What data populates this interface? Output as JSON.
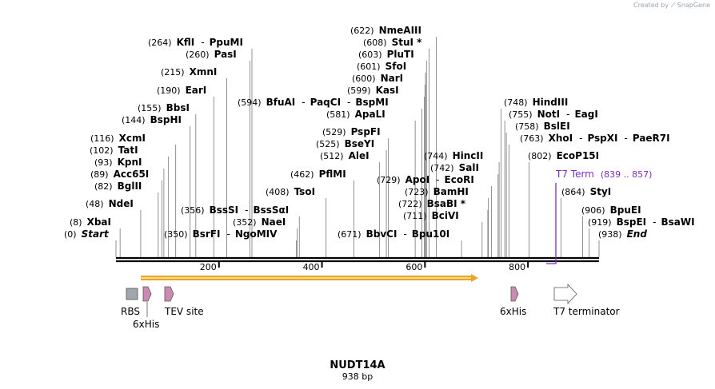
{
  "header": {
    "credit_text": "Created by",
    "brand": "SnapGene"
  },
  "map": {
    "name": "NUDT14A",
    "length_label": "938 bp",
    "length_bp": 938,
    "ticks": [
      "200",
      "400",
      "600",
      "800"
    ],
    "colors": {
      "line": "#000000",
      "feature_label": "#7b2fbe",
      "orf": "#f0a030",
      "orf_core": "#f7e27a",
      "tag": "#c98bb1",
      "rbs": "#9fa6ad",
      "grey_line": "#999999"
    }
  },
  "sites": [
    {
      "pos": "(0)",
      "name": "Start",
      "italic": true,
      "bp": 0
    },
    {
      "pos": "(8)",
      "name": "XbaI",
      "bp": 8
    },
    {
      "pos": "(48)",
      "name": "NdeI",
      "bp": 48
    },
    {
      "pos": "(82)",
      "name": "BglII",
      "bp": 82
    },
    {
      "pos": "(89)",
      "name": "Acc65I",
      "bp": 89
    },
    {
      "pos": "(93)",
      "name": "KpnI",
      "bp": 93
    },
    {
      "pos": "(102)",
      "name": "TatI",
      "bp": 102
    },
    {
      "pos": "(116)",
      "name": "XcmI",
      "bp": 116
    },
    {
      "pos": "(144)",
      "name": "BspHI",
      "bp": 144
    },
    {
      "pos": "(155)",
      "name": "BbsI",
      "bp": 155
    },
    {
      "pos": "(190)",
      "name": "EarI",
      "bp": 190
    },
    {
      "pos": "(215)",
      "name": "XmnI",
      "bp": 215
    },
    {
      "pos": "(260)",
      "name": "PasI",
      "bp": 260
    },
    {
      "pos": "(264)",
      "name": "KflI",
      "name2": "PpuMI",
      "bp": 264
    },
    {
      "pos": "(350)",
      "name": "BsrFI",
      "name2": "NgoMIV",
      "bp": 350
    },
    {
      "pos": "(352)",
      "name": "NaeI",
      "bp": 352
    },
    {
      "pos": "(356)",
      "name": "BssSI",
      "name2": "BssSαI",
      "bp": 356
    },
    {
      "pos": "(408)",
      "name": "TsoI",
      "bp": 408
    },
    {
      "pos": "(462)",
      "name": "PflMI",
      "bp": 462
    },
    {
      "pos": "(512)",
      "name": "AleI",
      "bp": 512
    },
    {
      "pos": "(525)",
      "name": "BseYI",
      "bp": 525
    },
    {
      "pos": "(529)",
      "name": "PspFI",
      "bp": 529
    },
    {
      "pos": "(581)",
      "name": "ApaLI",
      "bp": 581
    },
    {
      "pos": "(594)",
      "name": "BfuAI",
      "name2": "PaqCI",
      "name3": "BspMI",
      "bp": 594
    },
    {
      "pos": "(599)",
      "name": "KasI",
      "bp": 599
    },
    {
      "pos": "(600)",
      "name": "NarI",
      "bp": 600
    },
    {
      "pos": "(601)",
      "name": "SfoI",
      "bp": 601
    },
    {
      "pos": "(603)",
      "name": "PluTI",
      "bp": 603
    },
    {
      "pos": "(608)",
      "name": "StuI *",
      "bp": 608
    },
    {
      "pos": "(622)",
      "name": "NmeAIII",
      "bp": 622
    },
    {
      "pos": "(671)",
      "name": "BbvCI",
      "name2": "Bpu10I",
      "bp": 671
    },
    {
      "pos": "(711)",
      "name": "BciVI",
      "bp": 711
    },
    {
      "pos": "(722)",
      "name": "BsaBI *",
      "bp": 722
    },
    {
      "pos": "(723)",
      "name": "BamHI",
      "bp": 723
    },
    {
      "pos": "(729)",
      "name": "ApoI",
      "name2": "EcoRI",
      "bp": 729
    },
    {
      "pos": "(742)",
      "name": "SalI",
      "bp": 742
    },
    {
      "pos": "(744)",
      "name": "HincII",
      "bp": 744
    },
    {
      "pos": "(748)",
      "name": "HindIII",
      "bp": 748
    },
    {
      "pos": "(755)",
      "name": "NotI",
      "name2": "EagI",
      "bp": 755
    },
    {
      "pos": "(758)",
      "name": "BslEI",
      "bp": 758
    },
    {
      "pos": "(763)",
      "name": "XhoI",
      "name2": "PspXI",
      "name3": "PaeR7I",
      "bp": 763
    },
    {
      "pos": "(802)",
      "name": "EcoP15I",
      "bp": 802
    },
    {
      "pos": "(839 .. 857)",
      "name": "T7 Term",
      "feature": true,
      "bp": 839
    },
    {
      "pos": "(864)",
      "name": "StyI",
      "bp": 864
    },
    {
      "pos": "(906)",
      "name": "BpuEI",
      "bp": 906
    },
    {
      "pos": "(919)",
      "name": "BspEI",
      "name2": "BsaWI",
      "bp": 919
    },
    {
      "pos": "(938)",
      "name": "End",
      "italic": true,
      "bp": 938
    }
  ],
  "features": [
    {
      "label": "RBS",
      "kind": "rbs"
    },
    {
      "label": "6xHis",
      "kind": "tag"
    },
    {
      "label": "TEV site",
      "kind": "tag"
    },
    {
      "label": "6xHis",
      "kind": "tag"
    },
    {
      "label": "T7 terminator",
      "kind": "terminator"
    }
  ]
}
